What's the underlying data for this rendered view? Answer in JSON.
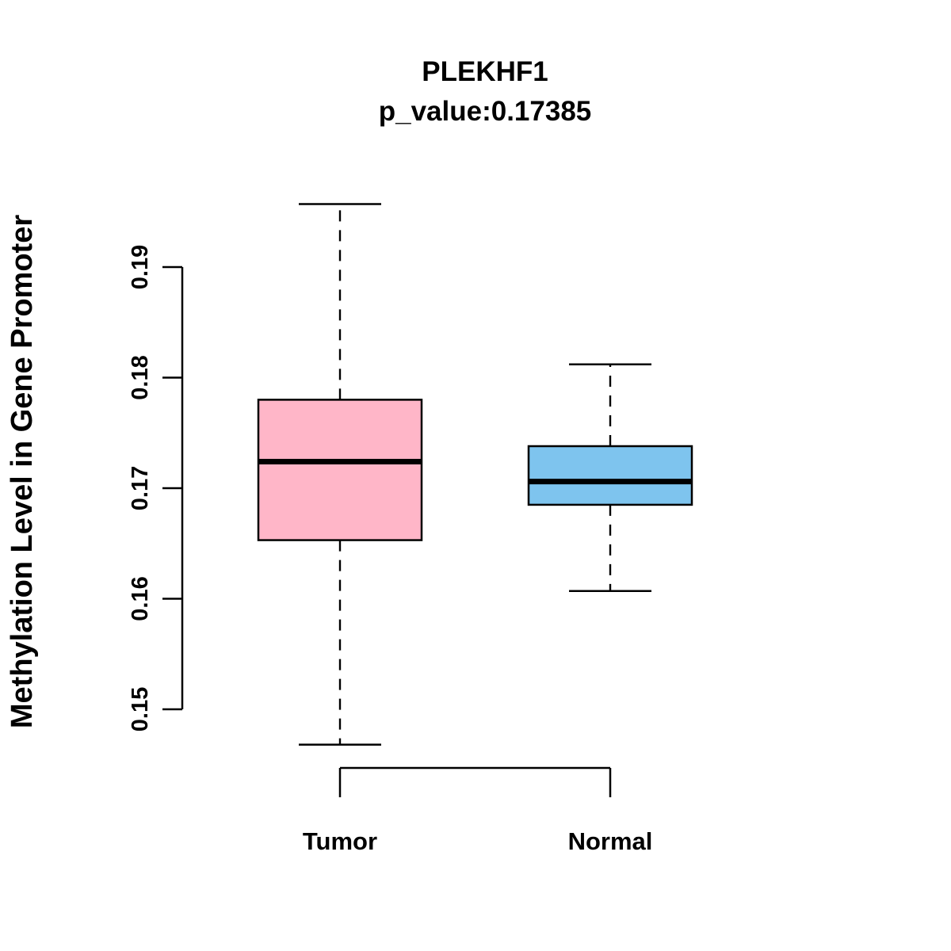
{
  "chart_data": {
    "type": "boxplot",
    "title": "PLEKHF1",
    "subtitle": "p_value:0.17385",
    "ylabel": "Methylation Level in Gene Promoter",
    "xlabel": "",
    "yticks": [
      0.15,
      0.16,
      0.17,
      0.18,
      0.19
    ],
    "ylim": [
      0.146,
      0.196
    ],
    "grid": false,
    "legend": "none",
    "groups": [
      {
        "label": "Tumor",
        "color": "#FFB6C8",
        "whisker_low": 0.1468,
        "q1": 0.1653,
        "median": 0.1724,
        "q3": 0.178,
        "whisker_high": 0.1957
      },
      {
        "label": "Normal",
        "color": "#7EC4EE",
        "whisker_low": 0.1607,
        "q1": 0.1685,
        "median": 0.1706,
        "q3": 0.1738,
        "whisker_high": 0.1812
      }
    ]
  }
}
